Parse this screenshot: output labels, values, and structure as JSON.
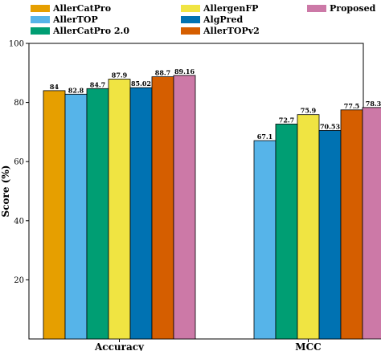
{
  "chart_data": {
    "type": "bar",
    "categories": [
      "Accuracy",
      "MCC"
    ],
    "ylabel": "Score (%)",
    "xlabel": "",
    "ylim": [
      0,
      100
    ],
    "yticks": [
      "20",
      "40",
      "60",
      "80",
      "100"
    ],
    "legend_position": "top",
    "series": [
      {
        "name": "AllerCatPro",
        "color": "#E69F00",
        "values": [
          84,
          null
        ],
        "labels": [
          "84",
          ""
        ]
      },
      {
        "name": "AllerTOP",
        "color": "#56B4E9",
        "values": [
          82.8,
          67.1
        ],
        "labels": [
          "82.8",
          "67.1"
        ]
      },
      {
        "name": "AllerCatPro 2.0",
        "color": "#009E73",
        "values": [
          84.7,
          72.7
        ],
        "labels": [
          "84.7",
          "72.7"
        ]
      },
      {
        "name": "AllergenFP",
        "color": "#F0E442",
        "values": [
          87.9,
          75.9
        ],
        "labels": [
          "87.9",
          "75.9"
        ]
      },
      {
        "name": "AlgPred",
        "color": "#0072B2",
        "values": [
          85.02,
          70.53
        ],
        "labels": [
          "85.02",
          "70.53"
        ]
      },
      {
        "name": "AllerTOPv2",
        "color": "#D55E00",
        "values": [
          88.7,
          77.5
        ],
        "labels": [
          "88.7",
          "77.5"
        ]
      },
      {
        "name": "Proposed",
        "color": "#CC79A7",
        "values": [
          89.16,
          78.3
        ],
        "labels": [
          "89.16",
          "78.3"
        ]
      }
    ]
  }
}
